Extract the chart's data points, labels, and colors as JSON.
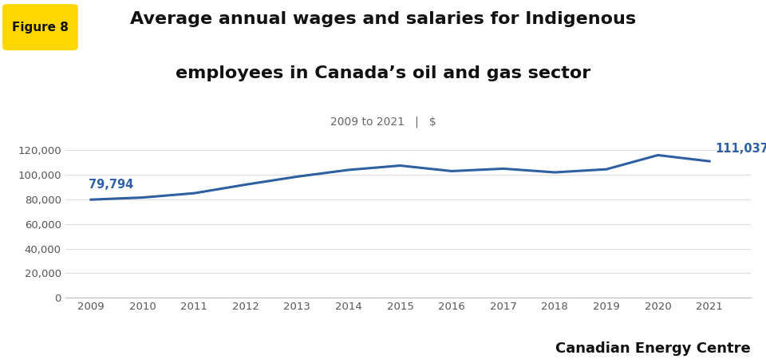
{
  "title_line1": "Average annual wages and salaries for Indigenous",
  "title_line2": "employees in Canada’s oil and gas sector",
  "subtitle": "2009 to 2021   |   $",
  "figure_label": "Figure 8",
  "figure_label_bg": "#FFD700",
  "years": [
    2009,
    2010,
    2011,
    2012,
    2013,
    2014,
    2015,
    2016,
    2017,
    2018,
    2019,
    2020,
    2021
  ],
  "values": [
    79794,
    81500,
    85000,
    92000,
    98500,
    104000,
    107500,
    103000,
    105000,
    102000,
    104500,
    116000,
    111037
  ],
  "line_color": "#2E5FA3",
  "line_width": 2.2,
  "annotation_2009": "79,794",
  "annotation_2021": "111,037",
  "annotation_color": "#2E5FA3",
  "ylabel_ticks": [
    0,
    20000,
    40000,
    60000,
    80000,
    100000,
    120000
  ],
  "ylim": [
    0,
    130000
  ],
  "xlim": [
    2008.5,
    2021.8
  ],
  "grid_color": "#DDDDDD",
  "background_color": "#FFFFFF",
  "brand_text": "Canadian Energy Centre",
  "title_fontsize": 16,
  "subtitle_fontsize": 10,
  "tick_fontsize": 9.5,
  "annotation_fontsize": 10.5,
  "brand_fontsize": 13
}
